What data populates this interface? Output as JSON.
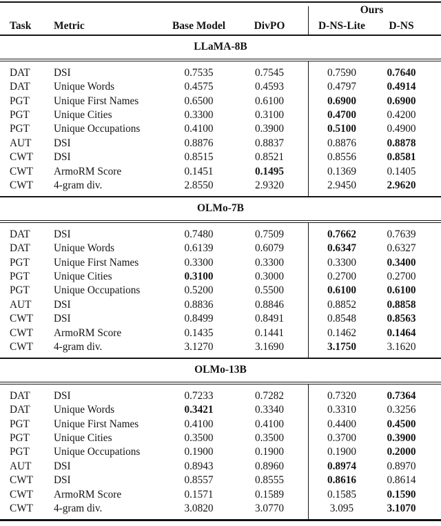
{
  "table": {
    "header": {
      "ours_label": "Ours",
      "columns": [
        "Task",
        "Metric",
        "Base Model",
        "DivPO",
        "D-NS-Lite",
        "D-NS"
      ]
    },
    "sections": [
      {
        "title": "LLaMA-8B",
        "rows": [
          {
            "task": "DAT",
            "metric": "DSI",
            "values": [
              "0.7535",
              "0.7545",
              "0.7590",
              "0.7640"
            ],
            "bold": [
              false,
              false,
              false,
              true
            ]
          },
          {
            "task": "DAT",
            "metric": "Unique Words",
            "values": [
              "0.4575",
              "0.4593",
              "0.4797",
              "0.4914"
            ],
            "bold": [
              false,
              false,
              false,
              true
            ]
          },
          {
            "task": "PGT",
            "metric": "Unique First Names",
            "values": [
              "0.6500",
              "0.6100",
              "0.6900",
              "0.6900"
            ],
            "bold": [
              false,
              false,
              true,
              true
            ]
          },
          {
            "task": "PGT",
            "metric": "Unique Cities",
            "values": [
              "0.3300",
              "0.3100",
              "0.4700",
              "0.4200"
            ],
            "bold": [
              false,
              false,
              true,
              false
            ]
          },
          {
            "task": "PGT",
            "metric": "Unique Occupations",
            "values": [
              "0.4100",
              "0.3900",
              "0.5100",
              "0.4900"
            ],
            "bold": [
              false,
              false,
              true,
              false
            ]
          },
          {
            "task": "AUT",
            "metric": "DSI",
            "values": [
              "0.8876",
              "0.8837",
              "0.8876",
              "0.8878"
            ],
            "bold": [
              false,
              false,
              false,
              true
            ]
          },
          {
            "task": "CWT",
            "metric": "DSI",
            "values": [
              "0.8515",
              "0.8521",
              "0.8556",
              "0.8581"
            ],
            "bold": [
              false,
              false,
              false,
              true
            ]
          },
          {
            "task": "CWT",
            "metric": "ArmoRM Score",
            "values": [
              "0.1451",
              "0.1495",
              "0.1369",
              "0.1405"
            ],
            "bold": [
              false,
              true,
              false,
              false
            ]
          },
          {
            "task": "CWT",
            "metric": "4-gram div.",
            "values": [
              "2.8550",
              "2.9320",
              "2.9450",
              "2.9620"
            ],
            "bold": [
              false,
              false,
              false,
              true
            ]
          }
        ]
      },
      {
        "title": "OLMo-7B",
        "rows": [
          {
            "task": "DAT",
            "metric": "DSI",
            "values": [
              "0.7480",
              "0.7509",
              "0.7662",
              "0.7639"
            ],
            "bold": [
              false,
              false,
              true,
              false
            ]
          },
          {
            "task": "DAT",
            "metric": "Unique Words",
            "values": [
              "0.6139",
              "0.6079",
              "0.6347",
              "0.6327"
            ],
            "bold": [
              false,
              false,
              true,
              false
            ]
          },
          {
            "task": "PGT",
            "metric": "Unique First Names",
            "values": [
              "0.3300",
              "0.3300",
              "0.3300",
              "0.3400"
            ],
            "bold": [
              false,
              false,
              false,
              true
            ]
          },
          {
            "task": "PGT",
            "metric": "Unique Cities",
            "values": [
              "0.3100",
              "0.3000",
              "0.2700",
              "0.2700"
            ],
            "bold": [
              true,
              false,
              false,
              false
            ]
          },
          {
            "task": "PGT",
            "metric": "Unique Occupations",
            "values": [
              "0.5200",
              "0.5500",
              "0.6100",
              "0.6100"
            ],
            "bold": [
              false,
              false,
              true,
              true
            ]
          },
          {
            "task": "AUT",
            "metric": "DSI",
            "values": [
              "0.8836",
              "0.8846",
              "0.8852",
              "0.8858"
            ],
            "bold": [
              false,
              false,
              false,
              true
            ]
          },
          {
            "task": "CWT",
            "metric": "DSI",
            "values": [
              "0.8499",
              "0.8491",
              "0.8548",
              "0.8563"
            ],
            "bold": [
              false,
              false,
              false,
              true
            ]
          },
          {
            "task": "CWT",
            "metric": "ArmoRM Score",
            "values": [
              "0.1435",
              "0.1441",
              "0.1462",
              "0.1464"
            ],
            "bold": [
              false,
              false,
              false,
              true
            ]
          },
          {
            "task": "CWT",
            "metric": "4-gram div.",
            "values": [
              "3.1270",
              "3.1690",
              "3.1750",
              "3.1620"
            ],
            "bold": [
              false,
              false,
              true,
              false
            ]
          }
        ]
      },
      {
        "title": "OLMo-13B",
        "rows": [
          {
            "task": "DAT",
            "metric": "DSI",
            "values": [
              "0.7233",
              "0.7282",
              "0.7320",
              "0.7364"
            ],
            "bold": [
              false,
              false,
              false,
              true
            ]
          },
          {
            "task": "DAT",
            "metric": "Unique Words",
            "values": [
              "0.3421",
              "0.3340",
              "0.3310",
              "0.3256"
            ],
            "bold": [
              true,
              false,
              false,
              false
            ]
          },
          {
            "task": "PGT",
            "metric": "Unique First Names",
            "values": [
              "0.4100",
              "0.4100",
              "0.4400",
              "0.4500"
            ],
            "bold": [
              false,
              false,
              false,
              true
            ]
          },
          {
            "task": "PGT",
            "metric": "Unique Cities",
            "values": [
              "0.3500",
              "0.3500",
              "0.3700",
              "0.3900"
            ],
            "bold": [
              false,
              false,
              false,
              true
            ]
          },
          {
            "task": "PGT",
            "metric": "Unique Occupations",
            "values": [
              "0.1900",
              "0.1900",
              "0.1900",
              "0.2000"
            ],
            "bold": [
              false,
              false,
              false,
              true
            ]
          },
          {
            "task": "AUT",
            "metric": "DSI",
            "values": [
              "0.8943",
              "0.8960",
              "0.8974",
              "0.8970"
            ],
            "bold": [
              false,
              false,
              true,
              false
            ]
          },
          {
            "task": "CWT",
            "metric": "DSI",
            "values": [
              "0.8557",
              "0.8555",
              "0.8616",
              "0.8614"
            ],
            "bold": [
              false,
              false,
              true,
              false
            ]
          },
          {
            "task": "CWT",
            "metric": "ArmoRM Score",
            "values": [
              "0.1571",
              "0.1589",
              "0.1585",
              "0.1590"
            ],
            "bold": [
              false,
              false,
              false,
              true
            ]
          },
          {
            "task": "CWT",
            "metric": "4-gram div.",
            "values": [
              "3.0820",
              "3.0770",
              "3.095",
              "3.1070"
            ],
            "bold": [
              false,
              false,
              false,
              true
            ]
          }
        ]
      }
    ]
  }
}
